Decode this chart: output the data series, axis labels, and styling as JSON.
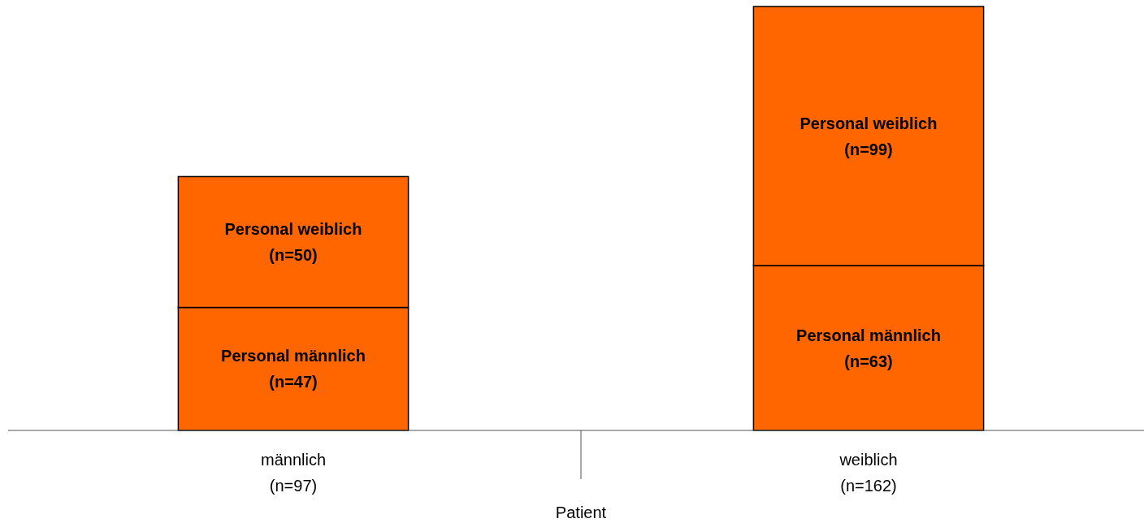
{
  "chart_data": {
    "type": "bar",
    "stacked": true,
    "xlabel": "Patient",
    "categories": [
      "männlich",
      "weiblich"
    ],
    "totals": [
      "(n=97)",
      "(n=162)"
    ],
    "series": [
      {
        "name": "Personal männlich",
        "color": "#ff6600",
        "values": [
          47,
          63
        ],
        "value_labels": [
          "(n=47)",
          "(n=63)"
        ]
      },
      {
        "name": "Personal weiblich",
        "color": "#ff6600",
        "values": [
          50,
          99
        ],
        "value_labels": [
          "(n=50)",
          "(n=99)"
        ]
      }
    ]
  }
}
